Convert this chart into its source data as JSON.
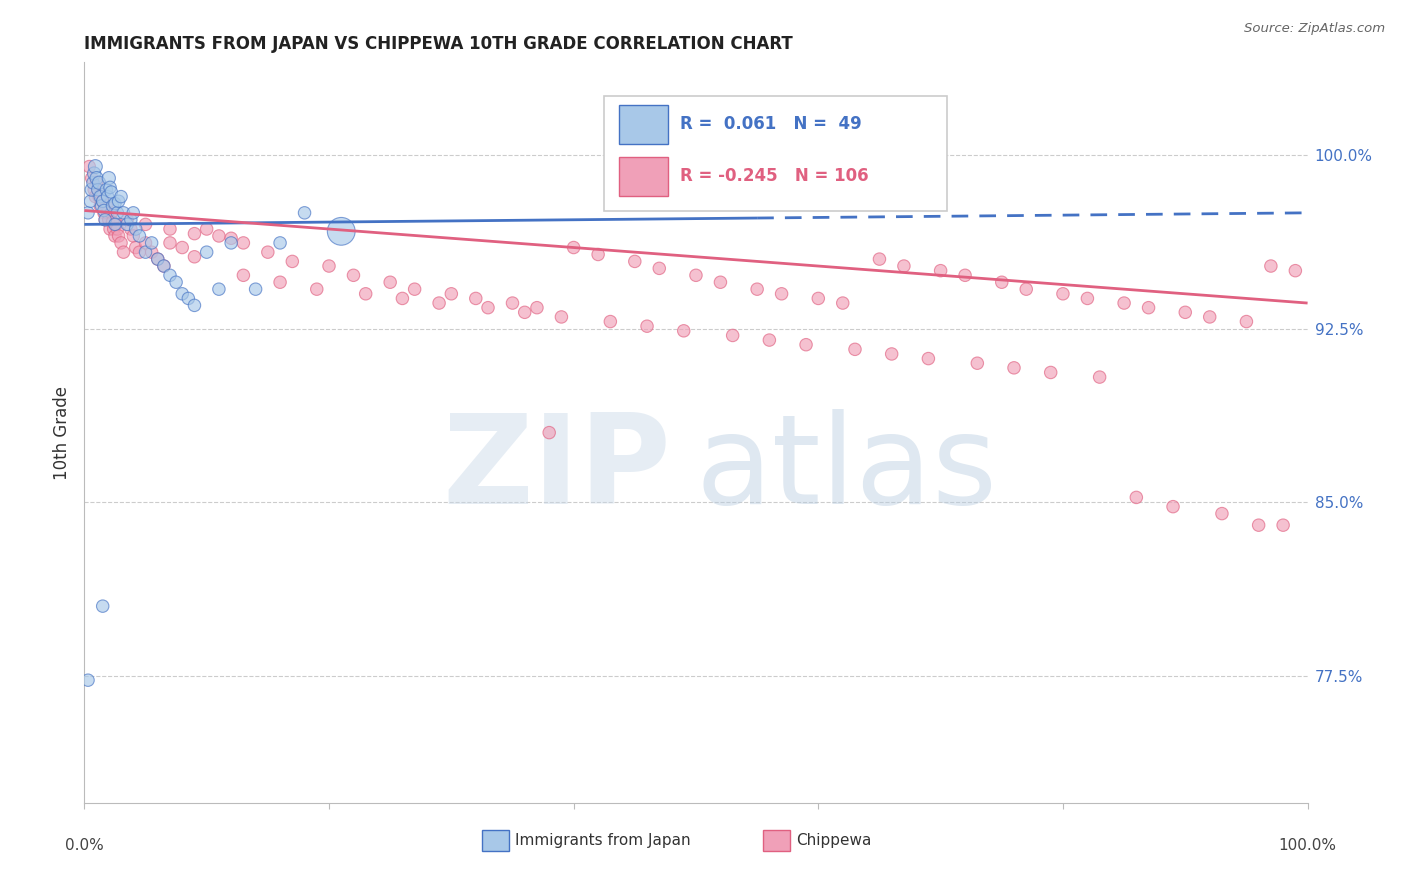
{
  "title": "IMMIGRANTS FROM JAPAN VS CHIPPEWA 10TH GRADE CORRELATION CHART",
  "source": "Source: ZipAtlas.com",
  "ylabel": "10th Grade",
  "y_tick_labels": [
    "77.5%",
    "85.0%",
    "92.5%",
    "100.0%"
  ],
  "y_tick_values": [
    0.775,
    0.85,
    0.925,
    1.0
  ],
  "x_min": 0.0,
  "x_max": 1.0,
  "y_min": 0.72,
  "y_max": 1.04,
  "blue_color": "#a8c8e8",
  "pink_color": "#f0a0b8",
  "blue_line_color": "#4472c4",
  "pink_line_color": "#e06080",
  "background_color": "#ffffff",
  "watermark_color_zip": "#c8d8e8",
  "watermark_color_atlas": "#b8cce0",
  "japan_R": 0.061,
  "chippewa_R": -0.245,
  "japan_N": 49,
  "chippewa_N": 106,
  "japan_x": [
    0.003,
    0.005,
    0.006,
    0.007,
    0.008,
    0.009,
    0.01,
    0.011,
    0.012,
    0.013,
    0.014,
    0.015,
    0.016,
    0.017,
    0.018,
    0.019,
    0.02,
    0.021,
    0.022,
    0.023,
    0.025,
    0.027,
    0.028,
    0.03,
    0.032,
    0.035,
    0.038,
    0.04,
    0.042,
    0.045,
    0.05,
    0.055,
    0.06,
    0.065,
    0.07,
    0.075,
    0.08,
    0.085,
    0.09,
    0.1,
    0.11,
    0.12,
    0.14,
    0.16,
    0.18,
    0.21,
    0.003,
    0.015,
    0.025
  ],
  "japan_y": [
    0.975,
    0.98,
    0.985,
    0.988,
    0.992,
    0.995,
    0.99,
    0.985,
    0.988,
    0.982,
    0.978,
    0.98,
    0.976,
    0.972,
    0.985,
    0.982,
    0.99,
    0.986,
    0.984,
    0.978,
    0.979,
    0.975,
    0.98,
    0.982,
    0.975,
    0.97,
    0.972,
    0.975,
    0.968,
    0.965,
    0.958,
    0.962,
    0.955,
    0.952,
    0.948,
    0.945,
    0.94,
    0.938,
    0.935,
    0.958,
    0.942,
    0.962,
    0.942,
    0.962,
    0.975,
    0.967,
    0.773,
    0.805,
    0.97
  ],
  "japan_sizes": [
    80,
    80,
    90,
    80,
    90,
    100,
    90,
    80,
    90,
    80,
    80,
    80,
    80,
    80,
    80,
    80,
    90,
    80,
    80,
    80,
    80,
    80,
    80,
    80,
    80,
    80,
    80,
    80,
    80,
    80,
    80,
    80,
    80,
    80,
    80,
    80,
    80,
    80,
    80,
    80,
    80,
    80,
    80,
    80,
    80,
    400,
    80,
    80,
    80
  ],
  "chippewa_x": [
    0.004,
    0.006,
    0.008,
    0.009,
    0.01,
    0.011,
    0.012,
    0.013,
    0.015,
    0.016,
    0.017,
    0.018,
    0.019,
    0.02,
    0.021,
    0.022,
    0.023,
    0.024,
    0.025,
    0.026,
    0.027,
    0.028,
    0.03,
    0.032,
    0.035,
    0.038,
    0.04,
    0.042,
    0.045,
    0.05,
    0.055,
    0.06,
    0.065,
    0.07,
    0.08,
    0.09,
    0.1,
    0.11,
    0.13,
    0.15,
    0.17,
    0.2,
    0.22,
    0.25,
    0.27,
    0.3,
    0.32,
    0.35,
    0.37,
    0.4,
    0.42,
    0.45,
    0.47,
    0.5,
    0.52,
    0.55,
    0.57,
    0.6,
    0.62,
    0.65,
    0.67,
    0.7,
    0.72,
    0.75,
    0.77,
    0.8,
    0.82,
    0.85,
    0.87,
    0.9,
    0.92,
    0.95,
    0.97,
    0.99,
    0.13,
    0.16,
    0.19,
    0.23,
    0.26,
    0.29,
    0.33,
    0.36,
    0.39,
    0.43,
    0.46,
    0.49,
    0.53,
    0.56,
    0.59,
    0.63,
    0.66,
    0.69,
    0.73,
    0.76,
    0.79,
    0.83,
    0.86,
    0.89,
    0.93,
    0.96,
    0.05,
    0.07,
    0.09,
    0.12,
    0.38,
    0.98
  ],
  "chippewa_y": [
    0.995,
    0.99,
    0.985,
    0.982,
    0.988,
    0.985,
    0.982,
    0.978,
    0.98,
    0.975,
    0.972,
    0.978,
    0.975,
    0.972,
    0.968,
    0.975,
    0.971,
    0.968,
    0.965,
    0.97,
    0.968,
    0.965,
    0.962,
    0.958,
    0.972,
    0.968,
    0.965,
    0.96,
    0.958,
    0.962,
    0.958,
    0.955,
    0.952,
    0.962,
    0.96,
    0.956,
    0.968,
    0.965,
    0.962,
    0.958,
    0.954,
    0.952,
    0.948,
    0.945,
    0.942,
    0.94,
    0.938,
    0.936,
    0.934,
    0.96,
    0.957,
    0.954,
    0.951,
    0.948,
    0.945,
    0.942,
    0.94,
    0.938,
    0.936,
    0.955,
    0.952,
    0.95,
    0.948,
    0.945,
    0.942,
    0.94,
    0.938,
    0.936,
    0.934,
    0.932,
    0.93,
    0.928,
    0.952,
    0.95,
    0.948,
    0.945,
    0.942,
    0.94,
    0.938,
    0.936,
    0.934,
    0.932,
    0.93,
    0.928,
    0.926,
    0.924,
    0.922,
    0.92,
    0.918,
    0.916,
    0.914,
    0.912,
    0.91,
    0.908,
    0.906,
    0.904,
    0.852,
    0.848,
    0.845,
    0.84,
    0.97,
    0.968,
    0.966,
    0.964,
    0.88,
    0.84
  ],
  "chippewa_sizes": [
    80,
    80,
    80,
    80,
    80,
    80,
    80,
    80,
    80,
    80,
    80,
    80,
    80,
    80,
    80,
    80,
    80,
    80,
    80,
    80,
    80,
    80,
    80,
    80,
    80,
    80,
    80,
    80,
    80,
    80,
    80,
    80,
    80,
    80,
    80,
    80,
    80,
    80,
    80,
    80,
    80,
    80,
    80,
    80,
    80,
    80,
    80,
    80,
    80,
    80,
    80,
    80,
    80,
    80,
    80,
    80,
    80,
    80,
    80,
    80,
    80,
    80,
    80,
    80,
    80,
    80,
    80,
    80,
    80,
    80,
    80,
    80,
    80,
    80,
    80,
    80,
    80,
    80,
    80,
    80,
    80,
    80,
    80,
    80,
    80,
    80,
    80,
    80,
    80,
    80,
    80,
    80,
    80,
    80,
    80,
    80,
    80,
    80,
    80,
    80,
    80,
    80,
    80,
    80,
    80,
    80
  ]
}
